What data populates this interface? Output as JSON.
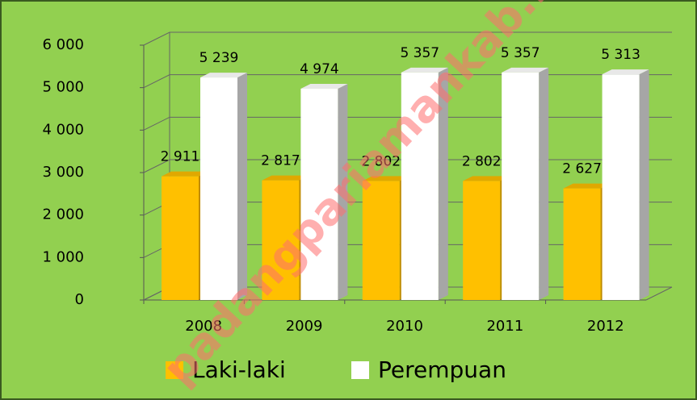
{
  "chart_data": {
    "type": "bar3d",
    "categories": [
      "2008",
      "2009",
      "2010",
      "2011",
      "2012"
    ],
    "series": [
      {
        "name": "Laki-laki",
        "color": "#ffc000",
        "values": [
          2911,
          2817,
          2802,
          2802,
          2627
        ],
        "value_labels": [
          "2 911",
          "2 817",
          "2 802",
          "2 802",
          "2 627"
        ]
      },
      {
        "name": "Perempuan",
        "color": "#ffffff",
        "values": [
          5239,
          4974,
          5357,
          5357,
          5313
        ],
        "value_labels": [
          "5 239",
          "4 974",
          "5 357",
          "5 357",
          "5 313"
        ]
      }
    ],
    "ylim": [
      0,
      6000
    ],
    "yticks": [
      {
        "value": 0,
        "label": "0"
      },
      {
        "value": 1000,
        "label": "1 000"
      },
      {
        "value": 2000,
        "label": "2 000"
      },
      {
        "value": 3000,
        "label": "3 000"
      },
      {
        "value": 4000,
        "label": "4 000"
      },
      {
        "value": 5000,
        "label": "5 000"
      },
      {
        "value": 6000,
        "label": "6 000"
      }
    ],
    "grid": true,
    "legend": "bottom",
    "background": "#92d050",
    "watermark": "padangpariamankab.bps"
  }
}
